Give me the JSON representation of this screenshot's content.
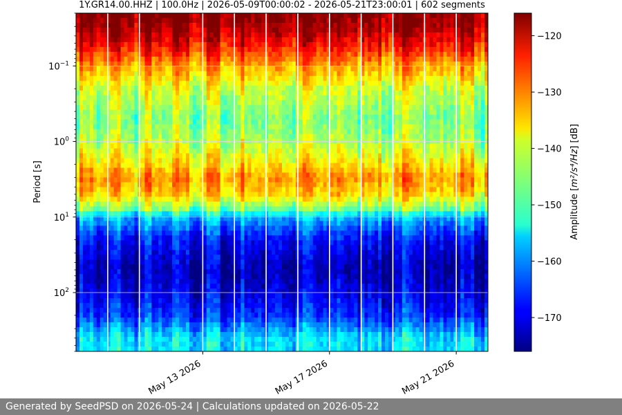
{
  "chart_data": {
    "type": "heatmap",
    "title": "1Y.GR14.00.HHZ | 100.0Hz | 2026-05-09T00:00:02 - 2026-05-21T23:00:01 | 602 segments",
    "ylabel": "Period [s]",
    "y_scale": "log",
    "y_invert": true,
    "ylim": [
      0.02,
      600
    ],
    "y_ticks": [
      {
        "value": 0.1,
        "base": "10",
        "exp": "−1"
      },
      {
        "value": 1,
        "base": "10",
        "exp": "0"
      },
      {
        "value": 10,
        "base": "10",
        "exp": "1"
      },
      {
        "value": 100,
        "base": "10",
        "exp": "2"
      }
    ],
    "x_ticks": [
      {
        "date": "2026-05-13",
        "label": "May 13 2026"
      },
      {
        "date": "2026-05-17",
        "label": "May 17 2026"
      },
      {
        "date": "2026-05-21",
        "label": "May 21 2026"
      }
    ],
    "xlim": [
      "2026-05-09T00:00:02",
      "2026-05-22T00:00:00"
    ],
    "colorbar": {
      "label_prefix": "Amplitude [",
      "label_unit": "m²/s⁴/Hz",
      "label_suffix": "] [dB]",
      "min": -176,
      "max": -116,
      "ticks": [
        -120,
        -130,
        -140,
        -150,
        -160,
        -170
      ],
      "tick_labels": [
        "−120",
        "−130",
        "−140",
        "−150",
        "−160",
        "−170"
      ],
      "colormap": "jet"
    },
    "grid": true,
    "data_gap_dates": [
      "2026-05-10",
      "2026-05-11",
      "2026-05-13",
      "2026-05-14",
      "2026-05-15",
      "2026-05-16",
      "2026-05-17",
      "2026-05-18",
      "2026-05-19",
      "2026-05-20",
      "2026-05-21"
    ],
    "band_profile_db": [
      {
        "period": 0.02,
        "db": -116
      },
      {
        "period": 0.03,
        "db": -118
      },
      {
        "period": 0.05,
        "db": -123
      },
      {
        "period": 0.1,
        "db": -133
      },
      {
        "period": 0.2,
        "db": -141
      },
      {
        "period": 0.5,
        "db": -146
      },
      {
        "period": 1,
        "db": -143
      },
      {
        "period": 2,
        "db": -137
      },
      {
        "period": 3,
        "db": -132
      },
      {
        "period": 5,
        "db": -136
      },
      {
        "period": 8,
        "db": -147
      },
      {
        "period": 10,
        "db": -158
      },
      {
        "period": 20,
        "db": -168
      },
      {
        "period": 50,
        "db": -173
      },
      {
        "period": 100,
        "db": -170
      },
      {
        "period": 200,
        "db": -166
      },
      {
        "period": 400,
        "db": -155
      }
    ]
  },
  "footer": {
    "text": "Generated by SeedPSD on 2026-05-24 | Calculations updated on 2026-05-22"
  }
}
